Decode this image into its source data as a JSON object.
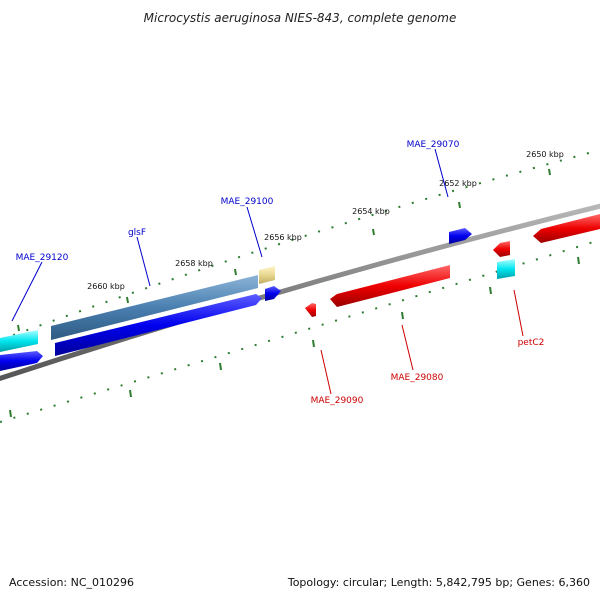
{
  "title": "Microcystis aeruginosa NIES-843, complete genome",
  "footer": {
    "accession": "Accession: NC_010296",
    "summary": "Topology: circular; Length: 5,842,795 bp; Genes: 6,360"
  },
  "scale_labels": [
    "2650 kbp",
    "2652 kbp",
    "2654 kbp",
    "2656 kbp",
    "2658 kbp",
    "2660 kbp"
  ],
  "genes": [
    {
      "name": "MAE_29070",
      "color": "#0000cc"
    },
    {
      "name": "MAE_29100",
      "color": "#0000cc"
    },
    {
      "name": "glsF",
      "color": "#0000cc"
    },
    {
      "name": "MAE_29120",
      "color": "#0000cc"
    },
    {
      "name": "petC2",
      "color": "#cc0000"
    },
    {
      "name": "MAE_29080",
      "color": "#cc0000"
    },
    {
      "name": "MAE_29090",
      "color": "#cc0000"
    }
  ],
  "colors": {
    "backbone": "#7f7f7f",
    "tick": "#2e7d32",
    "forward_cds": "#0000ee",
    "reverse_cds": "#ee0000",
    "gene_feature": "#4a7fb0",
    "rna_feature": "#00e5ee",
    "misc_feature": "#e8d890"
  }
}
